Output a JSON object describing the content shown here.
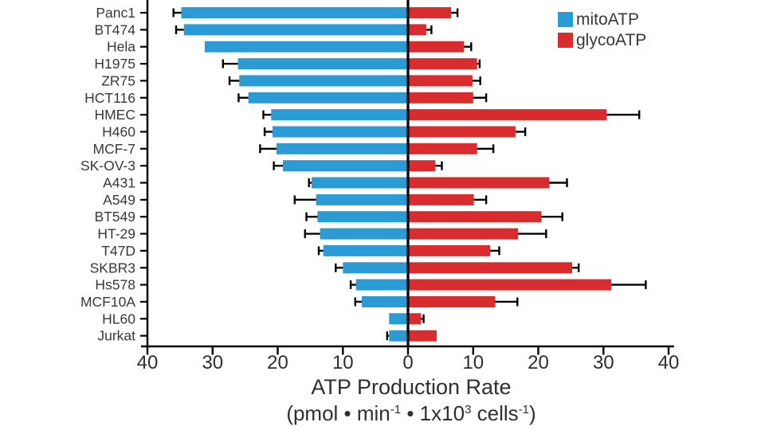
{
  "chart_data": {
    "type": "bar",
    "orientation": "horizontal_diverging",
    "title": "ATP Production Rate",
    "subtitle_plain": "(pmol • min-1 • 1x103 cells-1)",
    "subtitle_segments": [
      {
        "text": "(pmol • min",
        "sup": false
      },
      {
        "text": "-1",
        "sup": true
      },
      {
        "text": " • 1x10",
        "sup": false
      },
      {
        "text": "3",
        "sup": true
      },
      {
        "text": " cells",
        "sup": false
      },
      {
        "text": "-1",
        "sup": true
      },
      {
        "text": ")",
        "sup": false
      }
    ],
    "categories": [
      "Panc1",
      "BT474",
      "Hela",
      "H1975",
      "ZR75",
      "HCT116",
      "HMEC",
      "H460",
      "MCF-7",
      "SK-OV-3",
      "A431",
      "A549",
      "BT549",
      "HT-29",
      "T47D",
      "SKBR3",
      "Hs578",
      "MCF10A",
      "HL60",
      "Jurkat"
    ],
    "series": [
      {
        "name": "mitoATP",
        "color": "#2B9BD5",
        "side": "left",
        "values": [
          34.8,
          34.4,
          31.2,
          26.1,
          25.9,
          24.5,
          21.0,
          20.8,
          20.2,
          19.2,
          14.8,
          14.1,
          13.9,
          13.5,
          13.0,
          10.0,
          8.0,
          7.1,
          2.9,
          2.9
        ],
        "errors": [
          1.2,
          1.2,
          0,
          2.3,
          1.5,
          1.5,
          1.2,
          1.2,
          2.5,
          1.4,
          0.4,
          3.3,
          1.7,
          2.3,
          0.7,
          1.1,
          0.8,
          1.0,
          0,
          0.3
        ]
      },
      {
        "name": "glycoATP",
        "color": "#D92C2E",
        "side": "right",
        "values": [
          6.6,
          2.8,
          8.6,
          10.6,
          9.9,
          10.0,
          30.5,
          16.5,
          10.6,
          4.2,
          21.7,
          10.1,
          20.5,
          16.9,
          12.6,
          25.2,
          31.2,
          13.4,
          2.0,
          4.4
        ],
        "errors": [
          1.0,
          0.8,
          1.1,
          0.4,
          1.2,
          2.0,
          5.0,
          1.5,
          2.5,
          1.0,
          2.7,
          1.9,
          3.2,
          4.3,
          1.4,
          1.0,
          5.3,
          3.4,
          0.4,
          0
        ]
      }
    ],
    "x_axis": {
      "tick_values": [
        -40,
        -30,
        -20,
        -10,
        0,
        10,
        20,
        30,
        40
      ],
      "tick_labels": [
        "40",
        "30",
        "20",
        "10",
        "0",
        "10",
        "20",
        "30",
        "40"
      ],
      "xlim": [
        -40,
        40
      ]
    },
    "error_bars": "one-sided outward, T-cap",
    "legend_position": "top-right",
    "grid": false,
    "colors": {
      "axis": "#000000",
      "text": "#383838",
      "background": "#ffffff"
    }
  }
}
